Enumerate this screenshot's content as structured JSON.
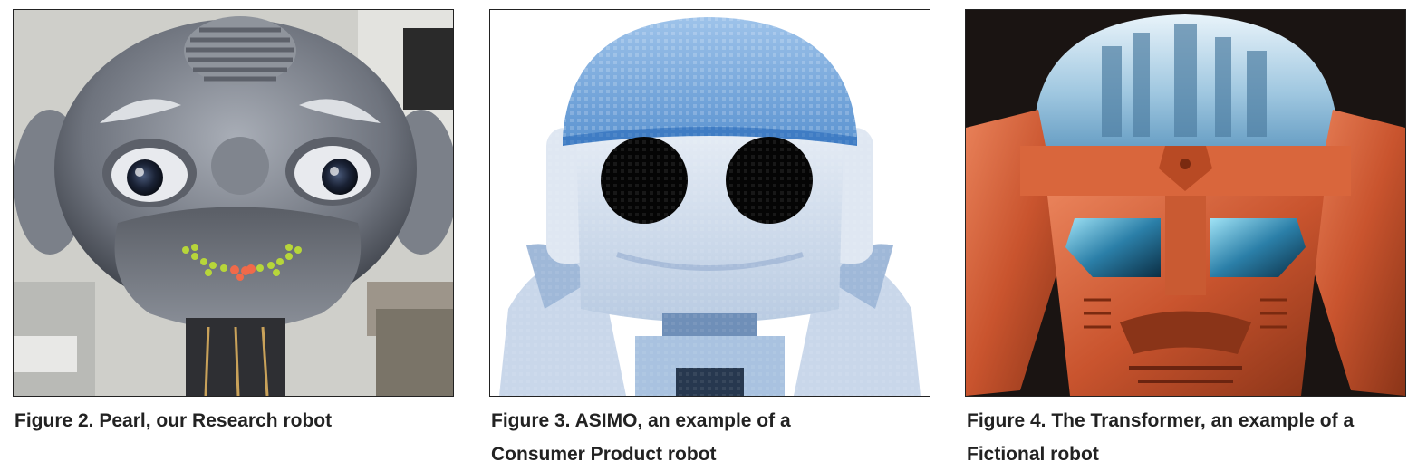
{
  "figures": [
    {
      "id": "fig2",
      "caption": "Figure 2. Pearl, our Research robot",
      "image_subject": "Pearl robot head"
    },
    {
      "id": "fig3",
      "caption": "Figure 3. ASIMO, an example of a\nConsumer Product robot",
      "image_subject": "ASIMO robot head"
    },
    {
      "id": "fig4",
      "caption": "Figure 4. The Transformer, an example of a\nFictional robot",
      "image_subject": "Transformer robot head"
    }
  ]
}
